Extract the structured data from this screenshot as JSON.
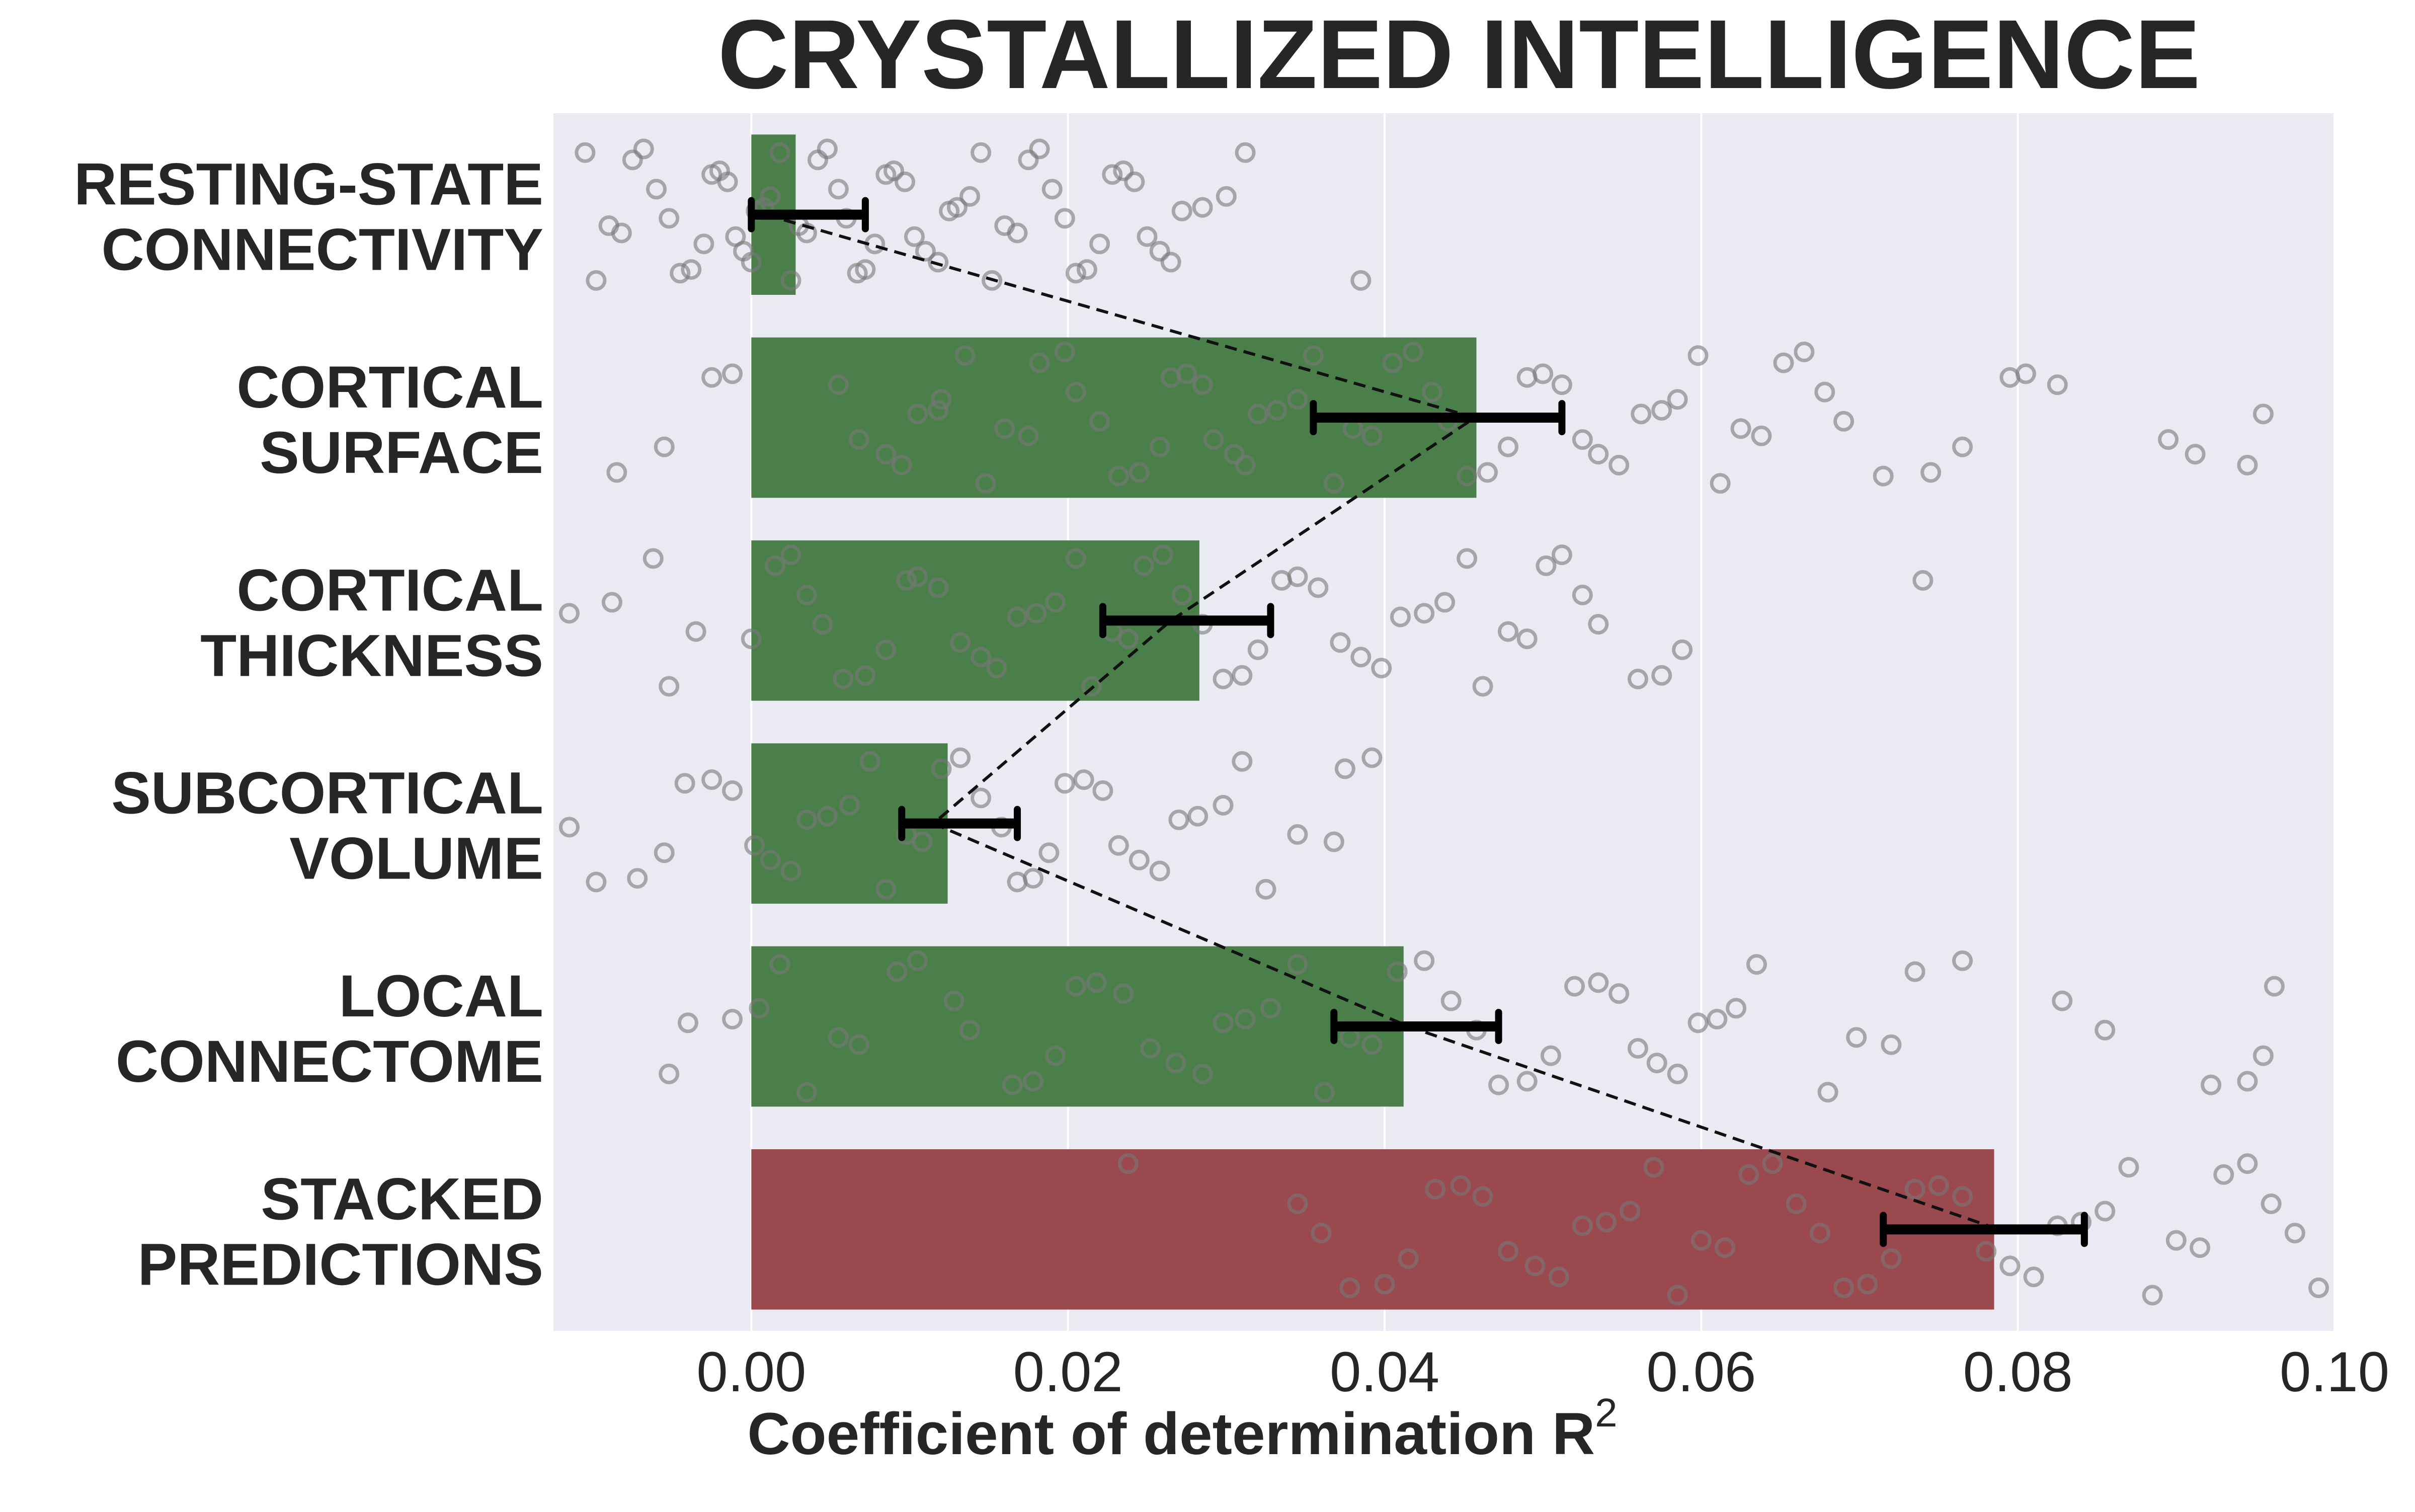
{
  "chart_data": {
    "type": "bar",
    "orientation": "horizontal",
    "title": "CRYSTALLIZED INTELLIGENCE",
    "xlabel": "Coefficient of determination R",
    "xlabel_superscript": "2",
    "xlim": [
      -0.0125,
      0.1
    ],
    "x_ticks": [
      0.0,
      0.02,
      0.04,
      0.06,
      0.08,
      0.1
    ],
    "x_tick_labels": [
      "0.00",
      "0.02",
      "0.04",
      "0.06",
      "0.08",
      "0.10"
    ],
    "grid": "vertical lines at x ticks",
    "categories": [
      [
        "RESTING-STATE",
        "CONNECTIVITY"
      ],
      [
        "CORTICAL",
        "SURFACE"
      ],
      [
        "CORTICAL",
        "THICKNESS"
      ],
      [
        "SUBCORTICAL",
        "VOLUME"
      ],
      [
        "LOCAL",
        "CONNECTOME"
      ],
      [
        "STACKED",
        "PREDICTIONS"
      ]
    ],
    "values": [
      0.0028,
      0.0458,
      0.0283,
      0.0124,
      0.0412,
      0.0785
    ],
    "bar_colors": [
      "#4a7f4a",
      "#4a7f4a",
      "#4a7f4a",
      "#4a7f4a",
      "#4a7f4a",
      "#9a4a4e"
    ],
    "ci_low": [
      0.0,
      0.0355,
      0.0222,
      0.0095,
      0.0368,
      0.0715
    ],
    "ci_high": [
      0.0072,
      0.0512,
      0.0328,
      0.0168,
      0.0472,
      0.0842
    ],
    "means_connected_by_dashed_line": [
      0.0009,
      0.0457,
      0.0265,
      0.0115,
      0.0415,
      0.0788
    ],
    "points": [
      [
        -0.0105,
        -0.0098,
        -0.009,
        -0.0082,
        -0.0075,
        -0.0068,
        -0.006,
        -0.0052,
        -0.0045,
        -0.0038,
        -0.003,
        -0.0025,
        -0.002,
        -0.0015,
        -0.001,
        -0.0005,
        0.0,
        0.0003,
        0.0008,
        0.0012,
        0.0018,
        0.0025,
        0.003,
        0.0035,
        0.0042,
        0.0048,
        0.0055,
        0.006,
        0.0067,
        0.0072,
        0.0078,
        0.0085,
        0.009,
        0.0097,
        0.0103,
        0.011,
        0.0118,
        0.0125,
        0.013,
        0.0138,
        0.0145,
        0.0152,
        0.016,
        0.0168,
        0.0175,
        0.0182,
        0.019,
        0.0198,
        0.0205,
        0.0212,
        0.022,
        0.0228,
        0.0235,
        0.0242,
        0.025,
        0.0258,
        0.0265,
        0.0272,
        0.0285,
        0.03,
        0.0312,
        0.0385
      ],
      [
        -0.0085,
        -0.0055,
        -0.0025,
        -0.0012,
        0.0055,
        0.0068,
        0.0085,
        0.0095,
        0.0105,
        0.0118,
        0.012,
        0.0135,
        0.0148,
        0.016,
        0.0175,
        0.0182,
        0.0198,
        0.0205,
        0.022,
        0.0232,
        0.0245,
        0.0258,
        0.0265,
        0.0275,
        0.0285,
        0.0292,
        0.0305,
        0.0312,
        0.032,
        0.0332,
        0.0345,
        0.0355,
        0.0368,
        0.038,
        0.0392,
        0.0405,
        0.0418,
        0.043,
        0.044,
        0.0452,
        0.0465,
        0.0478,
        0.049,
        0.05,
        0.0512,
        0.0525,
        0.0535,
        0.0548,
        0.0562,
        0.0575,
        0.0585,
        0.0598,
        0.0612,
        0.0625,
        0.0638,
        0.0652,
        0.0665,
        0.0678,
        0.069,
        0.0715,
        0.0745,
        0.0765,
        0.0795,
        0.0805,
        0.0825,
        0.0895,
        0.0912,
        0.0945,
        0.0955
      ],
      [
        -0.0115,
        -0.0088,
        -0.0062,
        -0.0052,
        -0.0035,
        0.0,
        0.0015,
        0.0025,
        0.0035,
        0.0045,
        0.0058,
        0.0072,
        0.0085,
        0.0098,
        0.0105,
        0.0118,
        0.0132,
        0.0145,
        0.0155,
        0.0168,
        0.018,
        0.0192,
        0.0205,
        0.0215,
        0.0228,
        0.0238,
        0.0248,
        0.026,
        0.0272,
        0.0285,
        0.0298,
        0.031,
        0.032,
        0.0335,
        0.0345,
        0.0358,
        0.0372,
        0.0385,
        0.0398,
        0.041,
        0.0425,
        0.0438,
        0.0452,
        0.0462,
        0.0478,
        0.049,
        0.0502,
        0.0512,
        0.0525,
        0.0535,
        0.056,
        0.0575,
        0.0588,
        0.074
      ],
      [
        -0.0115,
        -0.0098,
        -0.0072,
        -0.0055,
        -0.0042,
        -0.0025,
        -0.0012,
        0.0002,
        0.0012,
        0.0025,
        0.0035,
        0.0048,
        0.0062,
        0.0075,
        0.0085,
        0.0098,
        0.0108,
        0.012,
        0.0132,
        0.0145,
        0.0158,
        0.0168,
        0.0178,
        0.0188,
        0.0198,
        0.021,
        0.0222,
        0.0232,
        0.0245,
        0.0258,
        0.027,
        0.0282,
        0.0298,
        0.031,
        0.0325,
        0.0345,
        0.0368,
        0.0375,
        0.0392
      ],
      [
        -0.0052,
        -0.004,
        -0.0012,
        0.0005,
        0.0018,
        0.0035,
        0.0055,
        0.0068,
        0.0092,
        0.0105,
        0.0128,
        0.0138,
        0.0165,
        0.0178,
        0.0192,
        0.0205,
        0.0218,
        0.0235,
        0.0252,
        0.0268,
        0.0285,
        0.0298,
        0.0312,
        0.0328,
        0.0345,
        0.0362,
        0.0378,
        0.0392,
        0.0408,
        0.0425,
        0.0442,
        0.0458,
        0.0472,
        0.049,
        0.0505,
        0.052,
        0.0535,
        0.0548,
        0.056,
        0.0572,
        0.0585,
        0.0598,
        0.061,
        0.0622,
        0.0635,
        0.068,
        0.0698,
        0.072,
        0.0735,
        0.0765,
        0.0828,
        0.0855,
        0.0922,
        0.0945,
        0.0955,
        0.0962
      ],
      [
        0.0238,
        0.0345,
        0.036,
        0.0378,
        0.04,
        0.0415,
        0.0432,
        0.0448,
        0.0462,
        0.0478,
        0.0495,
        0.051,
        0.0525,
        0.054,
        0.0555,
        0.057,
        0.0585,
        0.06,
        0.0615,
        0.063,
        0.0645,
        0.066,
        0.0675,
        0.069,
        0.0705,
        0.072,
        0.0735,
        0.075,
        0.0765,
        0.078,
        0.0795,
        0.081,
        0.0825,
        0.084,
        0.0855,
        0.087,
        0.0885,
        0.09,
        0.0915,
        0.093,
        0.0945,
        0.096,
        0.0975,
        0.099
      ]
    ]
  }
}
